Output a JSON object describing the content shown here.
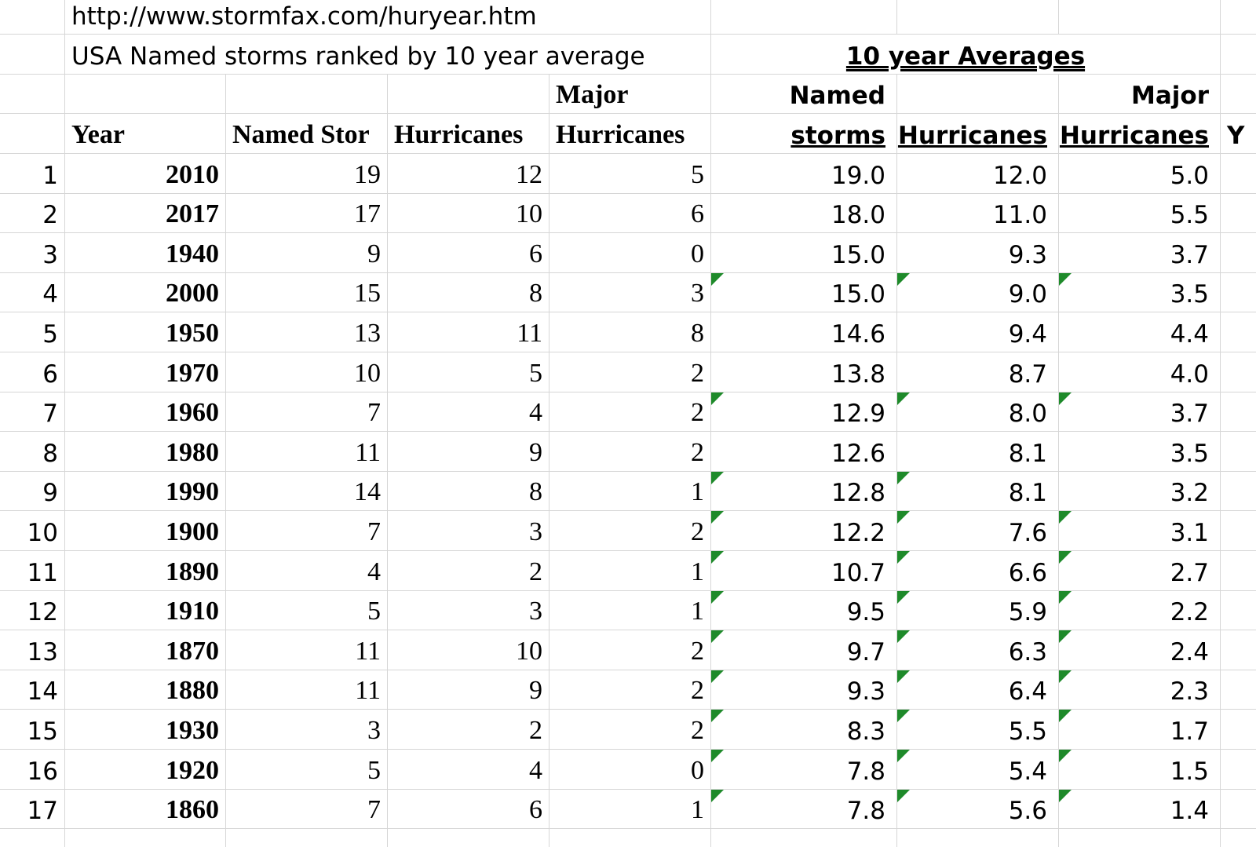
{
  "url": "http://www.stormfax.com/huryear.htm",
  "subtitle": "USA Named storms  ranked by 10 year average",
  "section_title": "10 year Averages",
  "header_top": [
    "Major",
    "Named",
    "Major"
  ],
  "header": [
    "Year",
    "Named Stor",
    "Hurricanes",
    "Hurricanes",
    "storms",
    "Hurricanes",
    "Hurricanes",
    "Y"
  ],
  "rows": [
    [
      "1",
      "2010",
      "19",
      "12",
      "5",
      "19.0",
      "12.0",
      "5.0"
    ],
    [
      "2",
      "2017",
      "17",
      "10",
      "6",
      "18.0",
      "11.0",
      "5.5"
    ],
    [
      "3",
      "1940",
      "9",
      "6",
      "0",
      "15.0",
      "9.3",
      "3.7"
    ],
    [
      "4",
      "2000",
      "15",
      "8",
      "3",
      "15.0",
      "9.0",
      "3.5"
    ],
    [
      "5",
      "1950",
      "13",
      "11",
      "8",
      "14.6",
      "9.4",
      "4.4"
    ],
    [
      "6",
      "1970",
      "10",
      "5",
      "2",
      "13.8",
      "8.7",
      "4.0"
    ],
    [
      "7",
      "1960",
      "7",
      "4",
      "2",
      "12.9",
      "8.0",
      "3.7"
    ],
    [
      "8",
      "1980",
      "11",
      "9",
      "2",
      "12.6",
      "8.1",
      "3.5"
    ],
    [
      "9",
      "1990",
      "14",
      "8",
      "1",
      "12.8",
      "8.1",
      "3.2"
    ],
    [
      "10",
      "1900",
      "7",
      "3",
      "2",
      "12.2",
      "7.6",
      "3.1"
    ],
    [
      "11",
      "1890",
      "4",
      "2",
      "1",
      "10.7",
      "6.6",
      "2.7"
    ],
    [
      "12",
      "1910",
      "5",
      "3",
      "1",
      "9.5",
      "5.9",
      "2.2"
    ],
    [
      "13",
      "1870",
      "11",
      "10",
      "2",
      "9.7",
      "6.3",
      "2.4"
    ],
    [
      "14",
      "1880",
      "11",
      "9",
      "2",
      "9.3",
      "6.4",
      "2.3"
    ],
    [
      "15",
      "1930",
      "3",
      "2",
      "2",
      "8.3",
      "5.5",
      "1.7"
    ],
    [
      "16",
      "1920",
      "5",
      "4",
      "0",
      "7.8",
      "5.4",
      "1.5"
    ],
    [
      "17",
      "1860",
      "7",
      "6",
      "1",
      "7.8",
      "5.6",
      "1.4"
    ]
  ]
}
